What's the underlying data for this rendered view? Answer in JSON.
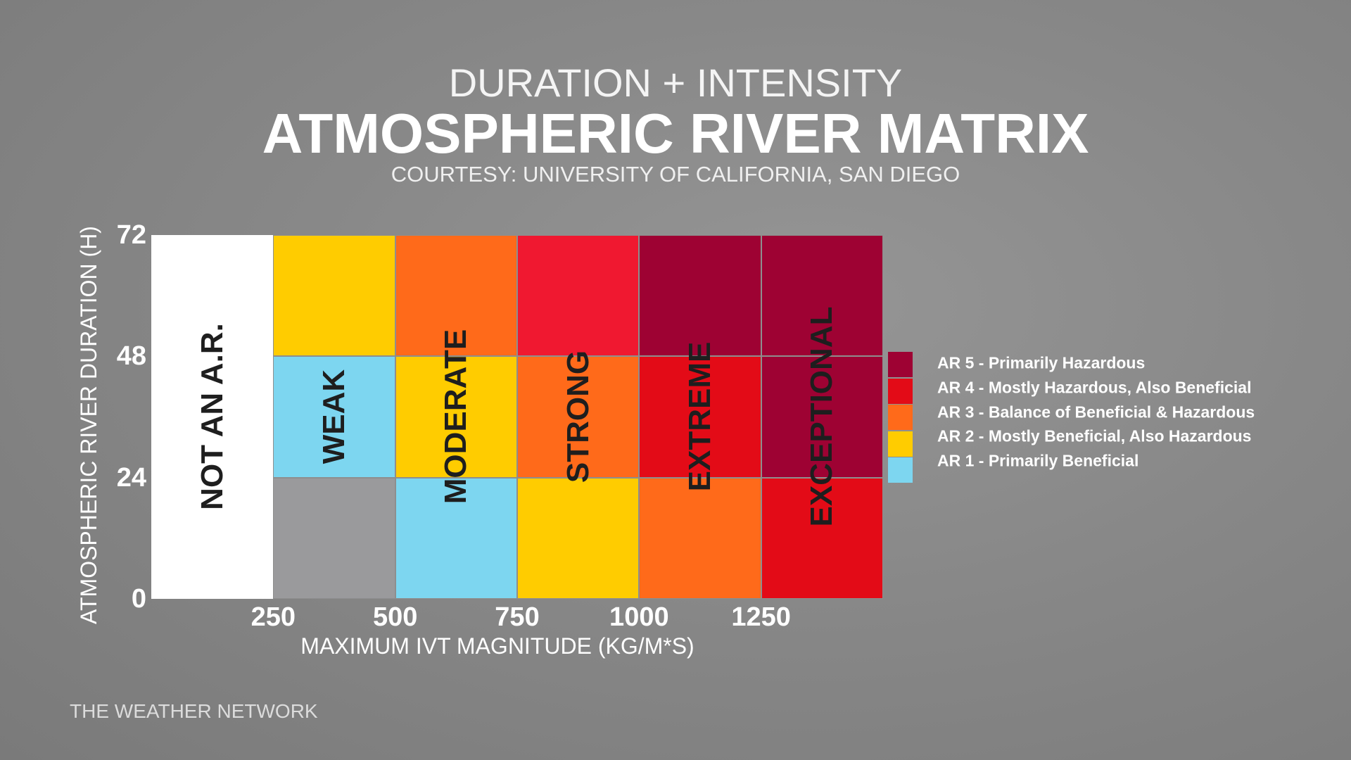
{
  "header": {
    "supertitle": "DURATION + INTENSITY",
    "title": "ATMOSPHERIC RIVER MATRIX",
    "courtesy": "COURTESY: UNIVERSITY OF CALIFORNIA, SAN DIEGO"
  },
  "footer": {
    "brand": "THE WEATHER NETWORK"
  },
  "chart_data": {
    "type": "heatmap",
    "xlabel": "MAXIMUM IVT MAGNITUDE (KG/M*S)",
    "ylabel": "ATMOSPHERIC RIVER DURATION (H)",
    "x_ticks": [
      "250",
      "500",
      "750",
      "1000",
      "1250"
    ],
    "y_ticks": [
      "0",
      "24",
      "48",
      "72"
    ],
    "x_bins": [
      [
        0,
        250
      ],
      [
        250,
        500
      ],
      [
        500,
        750
      ],
      [
        750,
        1000
      ],
      [
        1000,
        1250
      ],
      [
        1250,
        1500
      ]
    ],
    "y_bins": [
      [
        0,
        24
      ],
      [
        24,
        48
      ],
      [
        48,
        72
      ]
    ],
    "ylim": [
      0,
      72
    ],
    "column_labels": [
      "NOT AN A.R.",
      "WEAK",
      "MODERATE",
      "STRONG",
      "EXTREME",
      "EXCEPTIONAL"
    ],
    "cells_rows_bottom_to_top": [
      [
        "none",
        "none",
        "AR1",
        "AR2",
        "AR3",
        "AR4"
      ],
      [
        "none",
        "AR1",
        "AR2",
        "AR3",
        "AR4",
        "AR5"
      ],
      [
        "none",
        "AR2",
        "AR3",
        "AR4",
        "AR5",
        "AR5"
      ]
    ],
    "colors": {
      "none_low": "#ffffff",
      "none_gray": "#9a9a9c",
      "AR1": "#7dd6f0",
      "AR2": "#ffcc00",
      "AR3": "#ff6a1a",
      "AR4": "#e30b17",
      "AR4_top": "#f01830",
      "AR5": "#9e0233"
    },
    "legend": [
      {
        "key": "AR5",
        "label": "AR 5 - Primarily Hazardous"
      },
      {
        "key": "AR4",
        "label": "AR 4 - Mostly Hazardous, Also Beneficial"
      },
      {
        "key": "AR3",
        "label": "AR 3 - Balance of Beneficial & Hazardous"
      },
      {
        "key": "AR2",
        "label": "AR 2 - Mostly Beneficial, Also Hazardous"
      },
      {
        "key": "AR1",
        "label": "AR 1 - Primarily Beneficial"
      }
    ],
    "legend_position": "right"
  }
}
